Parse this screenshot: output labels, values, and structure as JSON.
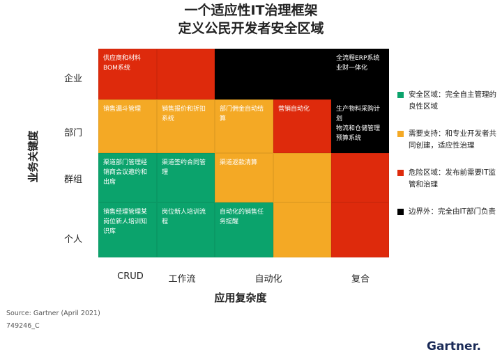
{
  "title": [
    "一个适应性IT治理框架",
    "定义公民开发者安全区域"
  ],
  "colors": {
    "red": "#de2a0c",
    "orange": "#f4a925",
    "green": "#0ba36c",
    "black": "#000000"
  },
  "y_axis": {
    "title": "业务关键度",
    "labels": [
      "企业",
      "部门",
      "群组",
      "个人"
    ]
  },
  "x_axis": {
    "title": "应用复杂度",
    "labels": [
      "CRUD",
      "工作流",
      "自动化",
      "复合"
    ]
  },
  "cells": [
    [
      {
        "c": "red",
        "t": "供应商和材料\nBOM系统"
      },
      {
        "c": "red",
        "t": ""
      },
      {
        "c": "black",
        "t": ""
      },
      {
        "c": "black",
        "t": ""
      },
      {
        "c": "black",
        "t": "全流程ERP系统\n业财一体化"
      }
    ],
    [
      {
        "c": "orange",
        "t": "销售漏斗管理"
      },
      {
        "c": "orange",
        "t": "销售报价和折扣系统"
      },
      {
        "c": "orange",
        "t": "部门佣金自动结算"
      },
      {
        "c": "red",
        "t": "营销自动化"
      },
      {
        "c": "black",
        "t": "生产物料采购计划\n物流和仓储管理\n预算系统"
      }
    ],
    [
      {
        "c": "green",
        "t": "渠道部门管理经销商会议邀约和出席"
      },
      {
        "c": "green",
        "t": "渠道签约合同管理"
      },
      {
        "c": "orange",
        "t": "渠道返款清算"
      },
      {
        "c": "orange",
        "t": ""
      },
      {
        "c": "red",
        "t": ""
      }
    ],
    [
      {
        "c": "green",
        "t": "销售经理管理某岗位新人培训知识库"
      },
      {
        "c": "green",
        "t": "岗位新人培训流程"
      },
      {
        "c": "green",
        "t": "自动化的销售任务提醒"
      },
      {
        "c": "orange",
        "t": ""
      },
      {
        "c": "red",
        "t": ""
      }
    ]
  ],
  "legend": [
    {
      "c": "green",
      "t": "安全区域：完全自主管理的良性区域"
    },
    {
      "c": "orange",
      "t": "需要支持：和专业开发者共同创建，适应性治理"
    },
    {
      "c": "red",
      "t": "危险区域：发布前需要IT监管和治理"
    },
    {
      "c": "black",
      "t": "边界外：完全由IT部门负责"
    }
  ],
  "source": "Source: Gartner (April 2021)",
  "code": "749246_C",
  "logo": "Gartner."
}
